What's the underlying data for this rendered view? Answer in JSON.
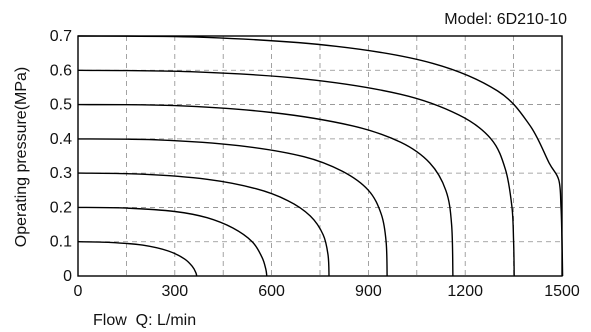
{
  "chart_data": {
    "type": "line",
    "model_label": "Model: 6D210-10",
    "xlabel": "Flow  Q: L/min",
    "ylabel": "Operating pressure(MPa)",
    "xlim": [
      0,
      1500
    ],
    "ylim": [
      0,
      0.7
    ],
    "x_ticks": [
      "0",
      "300",
      "600",
      "900",
      "1200",
      "1500"
    ],
    "y_ticks": [
      "0",
      "0.1",
      "0.2",
      "0.3",
      "0.4",
      "0.5",
      "0.6",
      "0.7"
    ],
    "grid": true,
    "grid_style": "dashed",
    "colors": {
      "line": "#000000",
      "grid": "#8c8c8c",
      "text": "#111111"
    },
    "series": [
      {
        "points": [
          [
            0,
            0.1
          ],
          [
            100,
            0.098
          ],
          [
            200,
            0.09
          ],
          [
            280,
            0.073
          ],
          [
            330,
            0.05
          ],
          [
            355,
            0.027
          ],
          [
            365,
            0.01
          ],
          [
            368,
            0
          ]
        ]
      },
      {
        "points": [
          [
            0,
            0.2
          ],
          [
            150,
            0.198
          ],
          [
            300,
            0.188
          ],
          [
            400,
            0.17
          ],
          [
            480,
            0.14
          ],
          [
            540,
            0.1
          ],
          [
            570,
            0.055
          ],
          [
            582,
            0.02
          ],
          [
            585,
            0
          ]
        ]
      },
      {
        "points": [
          [
            0,
            0.3
          ],
          [
            200,
            0.297
          ],
          [
            400,
            0.282
          ],
          [
            550,
            0.255
          ],
          [
            650,
            0.22
          ],
          [
            720,
            0.175
          ],
          [
            760,
            0.12
          ],
          [
            775,
            0.06
          ],
          [
            778,
            0
          ]
        ]
      },
      {
        "points": [
          [
            0,
            0.4
          ],
          [
            250,
            0.397
          ],
          [
            500,
            0.38
          ],
          [
            700,
            0.348
          ],
          [
            820,
            0.305
          ],
          [
            900,
            0.25
          ],
          [
            940,
            0.18
          ],
          [
            955,
            0.1
          ],
          [
            958,
            0
          ]
        ]
      },
      {
        "points": [
          [
            0,
            0.5
          ],
          [
            300,
            0.497
          ],
          [
            600,
            0.477
          ],
          [
            850,
            0.438
          ],
          [
            1000,
            0.39
          ],
          [
            1090,
            0.33
          ],
          [
            1140,
            0.25
          ],
          [
            1158,
            0.15
          ],
          [
            1162,
            0
          ]
        ]
      },
      {
        "points": [
          [
            0,
            0.6
          ],
          [
            350,
            0.596
          ],
          [
            700,
            0.575
          ],
          [
            1000,
            0.53
          ],
          [
            1180,
            0.47
          ],
          [
            1280,
            0.4
          ],
          [
            1325,
            0.31
          ],
          [
            1345,
            0.2
          ],
          [
            1350,
            0.1
          ],
          [
            1352,
            0
          ]
        ]
      },
      {
        "points": [
          [
            0,
            0.7
          ],
          [
            400,
            0.696
          ],
          [
            800,
            0.67
          ],
          [
            1100,
            0.62
          ],
          [
            1300,
            0.54
          ],
          [
            1400,
            0.44
          ],
          [
            1460,
            0.33
          ],
          [
            1490,
            0.28
          ],
          [
            1497,
            0.2
          ],
          [
            1500,
            0.1
          ],
          [
            1502,
            0
          ]
        ]
      }
    ]
  }
}
